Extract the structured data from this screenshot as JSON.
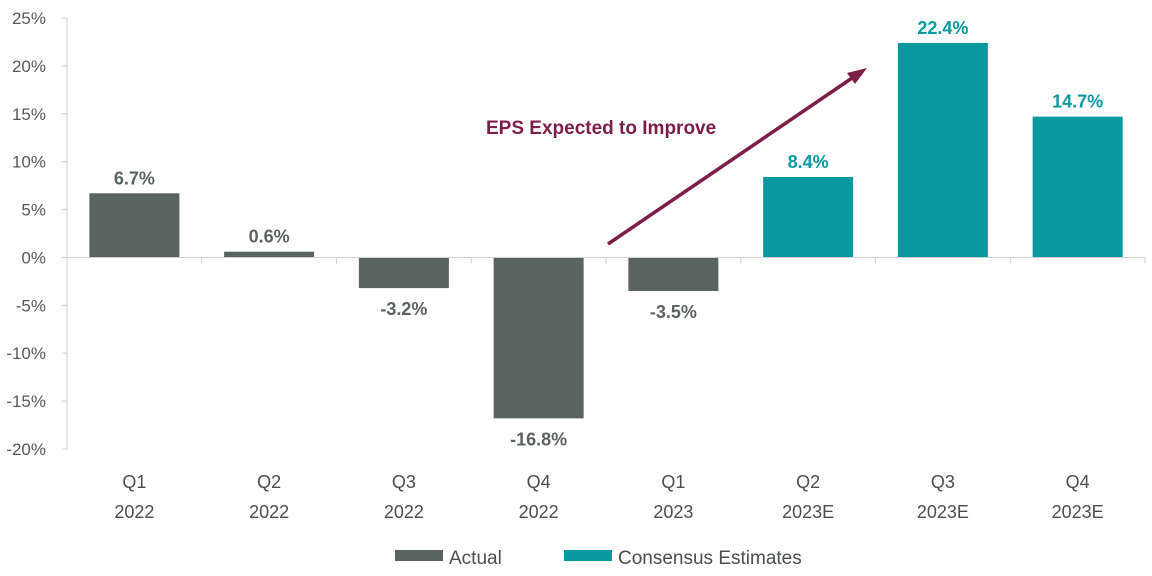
{
  "chart_data": {
    "type": "bar",
    "categories": [
      [
        "Q1",
        "2022"
      ],
      [
        "Q2",
        "2022"
      ],
      [
        "Q3",
        "2022"
      ],
      [
        "Q4",
        "2022"
      ],
      [
        "Q1",
        "2023"
      ],
      [
        "Q2",
        "2023E"
      ],
      [
        "Q3",
        "2023E"
      ],
      [
        "Q4",
        "2023E"
      ]
    ],
    "series": [
      {
        "name": "Actual",
        "color": "#59635f",
        "values": [
          6.7,
          0.6,
          -3.2,
          -16.8,
          -3.5,
          null,
          null,
          null
        ]
      },
      {
        "name": "Consensus Estimates",
        "color": "#0899a0",
        "values": [
          null,
          null,
          null,
          null,
          null,
          8.4,
          22.4,
          14.7
        ]
      }
    ],
    "data_labels": [
      "6.7%",
      "0.6%",
      "-3.2%",
      "-16.8%",
      "-3.5%",
      "8.4%",
      "22.4%",
      "14.7%"
    ],
    "y_ticks": [
      "25%",
      "20%",
      "15%",
      "10%",
      "5%",
      "0%",
      "-5%",
      "-10%",
      "-15%",
      "-20%"
    ],
    "ylim": [
      -20,
      25
    ],
    "y_step": 5,
    "grid": false,
    "legend_position": "bottom-center",
    "annotation": {
      "text": "EPS Expected to Improve",
      "color": "#7d1d4a",
      "arrow": "up-right"
    }
  }
}
